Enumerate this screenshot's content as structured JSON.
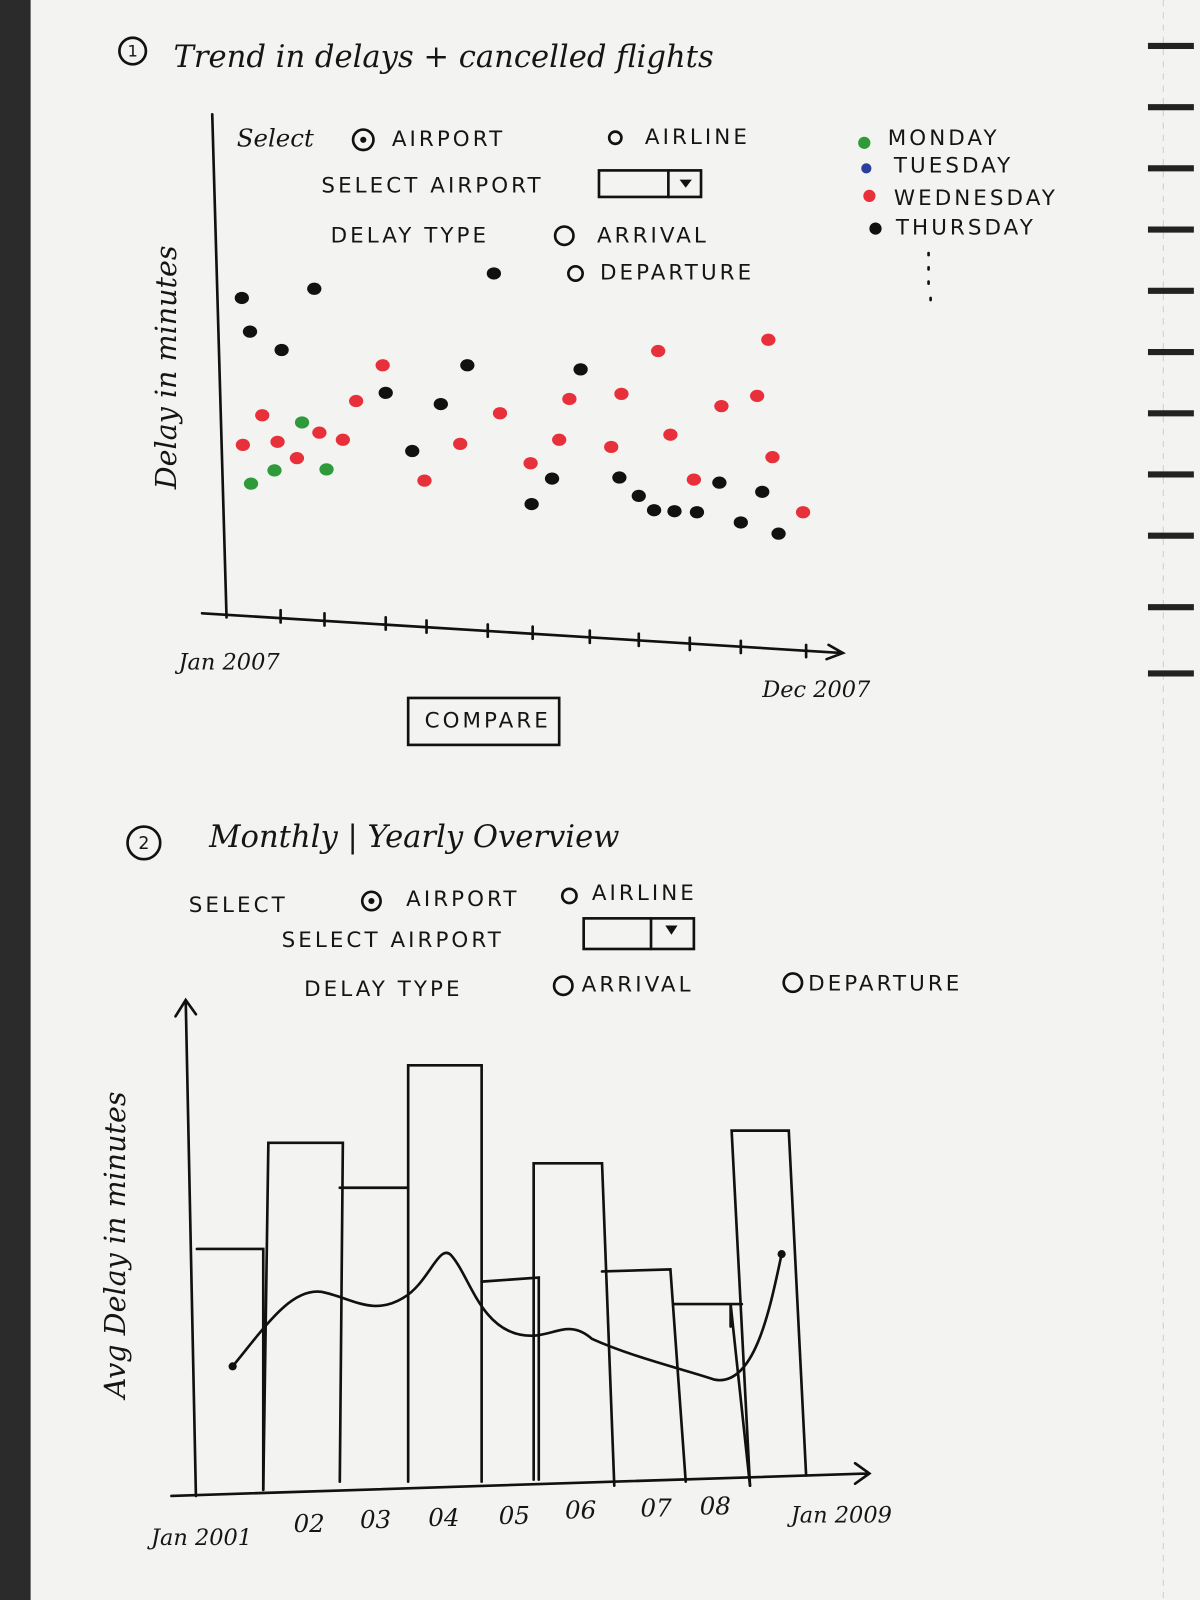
{
  "section1": {
    "number": "1",
    "title": "Trend in delays + cancelled flights",
    "select_label": "Select",
    "option_airport": "AIRPORT",
    "option_airline": "AIRLINE",
    "select_airport_label": "SELECT AIRPORT",
    "delay_type_label": "DELAY TYPE",
    "option_arrival": "ARRIVAL",
    "option_departure": "DEPARTURE",
    "legend": [
      "MONDAY",
      "TUESDAY",
      "WEDNESDAY",
      "THURSDAY"
    ],
    "y_label": "Delay in minutes",
    "x_start": "Jan 2007",
    "x_end": "Dec 2007",
    "button": "COMPARE"
  },
  "section2": {
    "number": "2",
    "title": "Monthly | Yearly Overview",
    "select_label": "SELECT",
    "option_airport": "AIRPORT",
    "option_airline": "AIRLINE",
    "select_airport_label": "SELECT AIRPORT",
    "delay_type_label": "DELAY TYPE",
    "option_arrival": "ARRIVAL",
    "option_departure": "DEPARTURE",
    "y_label": "Avg Delay in minutes",
    "x_labels": [
      "Jan 2001",
      "02",
      "03",
      "04",
      "05",
      "06",
      "07",
      "08",
      "Jan 2009"
    ]
  }
}
